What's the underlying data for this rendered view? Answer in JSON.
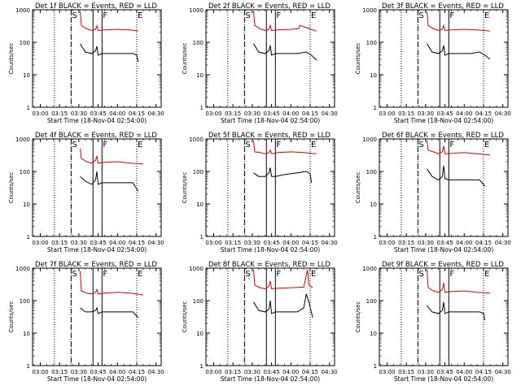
{
  "figure": {
    "colors": {
      "events": "#000000",
      "lld": "#e00000",
      "axes": "#000000"
    }
  },
  "chart_data": [
    {
      "type": "line",
      "panel": 1,
      "title": "Det 1f BLACK = Events, RED = LLD",
      "xlabel": "Start Time (18-Nov-04 02:54:00)",
      "ylabel": "Counts/sec",
      "x_ticks": [
        "03:00",
        "03:15",
        "03:30",
        "03:45",
        "04:00",
        "04:15",
        "04:30"
      ],
      "y_ticks": [
        "1",
        "10",
        "100",
        "1000"
      ],
      "y_scale": "log",
      "ylim": [
        1,
        1000
      ],
      "xlim": [
        "02:54",
        "04:34"
      ],
      "markers": {
        "S": "03:24",
        "F": "03:48",
        "E": "04:15"
      },
      "dotted_lines": [
        "03:11",
        "03:24",
        "04:15"
      ],
      "dashed_line": "03:24",
      "solid_lines": [
        "03:41",
        "03:48"
      ],
      "series": [
        {
          "name": "Events",
          "color": "#000000",
          "x": [
            "03:31",
            "03:35",
            "03:40",
            "03:43",
            "03:44",
            "03:45",
            "03:48",
            "03:55",
            "04:05",
            "04:12",
            "04:15",
            "04:16"
          ],
          "y": [
            90,
            50,
            45,
            55,
            75,
            40,
            45,
            45,
            45,
            45,
            40,
            25
          ]
        },
        {
          "name": "LLD",
          "color": "#e00000",
          "x": [
            "03:31",
            "03:32",
            "03:36",
            "03:40",
            "03:43",
            "03:44",
            "03:45",
            "03:50",
            "04:00",
            "04:10",
            "04:16"
          ],
          "y": [
            900,
            330,
            260,
            230,
            250,
            320,
            230,
            240,
            250,
            240,
            220
          ]
        }
      ]
    },
    {
      "type": "line",
      "panel": 2,
      "title": "Det 2f BLACK = Events, RED = LLD",
      "xlabel": "Start Time (18-Nov-04 02:54:00)",
      "ylabel": "Counts/sec",
      "x_ticks": [
        "03:00",
        "03:15",
        "03:30",
        "03:45",
        "04:00",
        "04:15",
        "04:30"
      ],
      "y_ticks": [
        "1",
        "10",
        "100",
        "1000"
      ],
      "y_scale": "log",
      "ylim": [
        1,
        1000
      ],
      "xlim": [
        "02:54",
        "04:34"
      ],
      "markers": {
        "S": "03:24",
        "F": "03:48",
        "E": "04:15"
      },
      "dotted_lines": [
        "03:11",
        "03:24",
        "04:15"
      ],
      "dashed_line": "03:24",
      "solid_lines": [
        "03:41",
        "03:48"
      ],
      "series": [
        {
          "name": "Events",
          "color": "#000000",
          "x": [
            "03:31",
            "03:35",
            "03:40",
            "03:43",
            "03:44",
            "03:45",
            "03:48",
            "03:55",
            "04:05",
            "04:12",
            "04:16",
            "04:20"
          ],
          "y": [
            90,
            50,
            45,
            55,
            80,
            40,
            45,
            45,
            45,
            50,
            40,
            28
          ]
        },
        {
          "name": "LLD",
          "color": "#e00000",
          "x": [
            "03:31",
            "03:32",
            "03:36",
            "03:40",
            "03:43",
            "03:44",
            "03:45",
            "03:50",
            "04:00",
            "04:06",
            "04:07",
            "04:20"
          ],
          "y": [
            900,
            330,
            260,
            230,
            250,
            330,
            230,
            240,
            250,
            260,
            330,
            220
          ]
        }
      ]
    },
    {
      "type": "line",
      "panel": 3,
      "title": "Det 3f BLACK = Events, RED = LLD",
      "xlabel": "Start Time (18-Nov-04 02:54:00)",
      "ylabel": "Counts/sec",
      "x_ticks": [
        "03:00",
        "03:15",
        "03:30",
        "03:45",
        "04:00",
        "04:15",
        "04:30"
      ],
      "y_ticks": [
        "1",
        "10",
        "100",
        "1000"
      ],
      "y_scale": "log",
      "ylim": [
        1,
        1000
      ],
      "xlim": [
        "02:54",
        "04:34"
      ],
      "markers": {
        "S": "03:24",
        "F": "03:48",
        "E": "04:15"
      },
      "dotted_lines": [
        "03:11",
        "03:24",
        "04:15"
      ],
      "dashed_line": "03:24",
      "solid_lines": [
        "03:41",
        "03:48"
      ],
      "series": [
        {
          "name": "Events",
          "color": "#000000",
          "x": [
            "03:31",
            "03:35",
            "03:40",
            "03:43",
            "03:44",
            "03:45",
            "03:48",
            "03:55",
            "04:05",
            "04:12",
            "04:16",
            "04:20"
          ],
          "y": [
            90,
            50,
            45,
            55,
            80,
            40,
            45,
            45,
            45,
            50,
            40,
            30
          ]
        },
        {
          "name": "LLD",
          "color": "#e00000",
          "x": [
            "03:31",
            "03:32",
            "03:36",
            "03:40",
            "03:43",
            "03:44",
            "03:45",
            "03:50",
            "04:00",
            "04:10",
            "04:20"
          ],
          "y": [
            900,
            330,
            260,
            230,
            250,
            330,
            230,
            240,
            250,
            240,
            220
          ]
        }
      ]
    },
    {
      "type": "line",
      "panel": 4,
      "title": "Det 4f BLACK = Events, RED = LLD",
      "xlabel": "Start Time (18-Nov-04 02:54:00)",
      "ylabel": "Counts/sec",
      "x_ticks": [
        "03:00",
        "03:15",
        "03:30",
        "03:45",
        "04:00",
        "04:15",
        "04:30"
      ],
      "y_ticks": [
        "1",
        "10",
        "100",
        "1000"
      ],
      "y_scale": "log",
      "ylim": [
        1,
        1000
      ],
      "xlim": [
        "02:54",
        "04:34"
      ],
      "markers": {
        "S": "03:24",
        "F": "03:48",
        "E": "04:15"
      },
      "dotted_lines": [
        "03:11",
        "03:24",
        "04:15"
      ],
      "dashed_line": "03:24",
      "solid_lines": [
        "03:41",
        "03:48"
      ],
      "series": [
        {
          "name": "Events",
          "color": "#000000",
          "x": [
            "03:31",
            "03:35",
            "03:40",
            "03:43",
            "03:44",
            "03:45",
            "03:48",
            "03:55",
            "04:05",
            "04:12",
            "04:16"
          ],
          "y": [
            70,
            50,
            40,
            55,
            100,
            40,
            45,
            45,
            45,
            45,
            25
          ]
        },
        {
          "name": "LLD",
          "color": "#e00000",
          "x": [
            "03:31",
            "03:32",
            "03:36",
            "03:40",
            "03:43",
            "03:44",
            "03:45",
            "03:50",
            "04:00",
            "04:10",
            "04:20"
          ],
          "y": [
            500,
            250,
            200,
            180,
            220,
            300,
            180,
            190,
            200,
            180,
            170
          ]
        }
      ]
    },
    {
      "type": "line",
      "panel": 5,
      "title": "Det 5f BLACK = Events, RED = LLD",
      "xlabel": "Start Time (18-Nov-04 02:54:00)",
      "ylabel": "Counts/sec",
      "x_ticks": [
        "03:00",
        "03:15",
        "03:30",
        "03:45",
        "04:00",
        "04:15",
        "04:30"
      ],
      "y_ticks": [
        "1",
        "10",
        "100",
        "1000"
      ],
      "y_scale": "log",
      "ylim": [
        1,
        1000
      ],
      "xlim": [
        "02:54",
        "04:34"
      ],
      "markers": {
        "S": "03:24",
        "F": "03:48",
        "E": "04:15"
      },
      "dotted_lines": [
        "03:11",
        "03:24",
        "04:15"
      ],
      "dashed_line": "03:24",
      "solid_lines": [
        "03:41",
        "03:48"
      ],
      "series": [
        {
          "name": "Events",
          "color": "#000000",
          "x": [
            "03:31",
            "03:35",
            "03:40",
            "03:43",
            "03:44",
            "03:45",
            "03:48",
            "03:55",
            "04:05",
            "04:12",
            "04:15",
            "04:16"
          ],
          "y": [
            90,
            70,
            70,
            90,
            130,
            70,
            70,
            80,
            90,
            100,
            85,
            45
          ]
        },
        {
          "name": "LLD",
          "color": "#e00000",
          "x": [
            "03:31",
            "03:32",
            "03:36",
            "03:40",
            "03:43",
            "03:44",
            "03:45",
            "03:50",
            "04:00",
            "04:10",
            "04:20"
          ],
          "y": [
            900,
            400,
            380,
            350,
            380,
            450,
            350,
            380,
            400,
            380,
            350
          ]
        }
      ]
    },
    {
      "type": "line",
      "panel": 6,
      "title": "Det 6f BLACK = Events, RED = LLD",
      "xlabel": "Start Time (18-Nov-04 02:54:00)",
      "ylabel": "Counts/sec",
      "x_ticks": [
        "03:00",
        "03:15",
        "03:30",
        "03:45",
        "04:00",
        "04:15",
        "04:30"
      ],
      "y_ticks": [
        "1",
        "10",
        "100",
        "1000"
      ],
      "y_scale": "log",
      "ylim": [
        1,
        1000
      ],
      "xlim": [
        "02:54",
        "04:34"
      ],
      "markers": {
        "S": "03:24",
        "F": "03:48",
        "E": "04:15"
      },
      "dotted_lines": [
        "03:11",
        "03:24",
        "04:15"
      ],
      "dashed_line": "03:24",
      "solid_lines": [
        "03:41",
        "03:48"
      ],
      "series": [
        {
          "name": "Events",
          "color": "#000000",
          "x": [
            "03:31",
            "03:35",
            "03:40",
            "03:43",
            "03:44",
            "03:45",
            "03:48",
            "03:55",
            "04:05",
            "04:12",
            "04:16"
          ],
          "y": [
            120,
            70,
            55,
            70,
            150,
            60,
            55,
            55,
            55,
            55,
            35
          ]
        },
        {
          "name": "LLD",
          "color": "#e00000",
          "x": [
            "03:31",
            "03:32",
            "03:36",
            "03:40",
            "03:43",
            "03:44",
            "03:45",
            "03:50",
            "04:00",
            "04:10",
            "04:20"
          ],
          "y": [
            900,
            450,
            400,
            350,
            400,
            600,
            350,
            360,
            380,
            350,
            320
          ]
        }
      ]
    },
    {
      "type": "line",
      "panel": 7,
      "title": "Det 7f BLACK = Events, RED = LLD",
      "xlabel": "Start Time (18-Nov-04 02:54:00)",
      "ylabel": "Counts/sec",
      "x_ticks": [
        "03:00",
        "03:15",
        "03:30",
        "03:45",
        "04:00",
        "04:15",
        "04:30"
      ],
      "y_ticks": [
        "1",
        "10",
        "100",
        "1000"
      ],
      "y_scale": "log",
      "ylim": [
        1,
        1000
      ],
      "xlim": [
        "02:54",
        "04:34"
      ],
      "markers": {
        "S": "03:24",
        "F": "03:48",
        "E": "04:15"
      },
      "dotted_lines": [
        "03:11",
        "03:24",
        "04:15"
      ],
      "dashed_line": "03:24",
      "solid_lines": [
        "03:41",
        "03:48"
      ],
      "series": [
        {
          "name": "Events",
          "color": "#000000",
          "x": [
            "03:31",
            "03:35",
            "03:40",
            "03:43",
            "03:44",
            "03:45",
            "03:48",
            "03:55",
            "04:05",
            "04:12",
            "04:16"
          ],
          "y": [
            60,
            45,
            45,
            50,
            60,
            40,
            45,
            45,
            45,
            45,
            30
          ]
        },
        {
          "name": "LLD",
          "color": "#e00000",
          "x": [
            "03:31",
            "03:32",
            "03:36",
            "03:40",
            "03:43",
            "03:44",
            "03:45",
            "03:50",
            "04:00",
            "04:10",
            "04:20"
          ],
          "y": [
            800,
            200,
            170,
            160,
            180,
            220,
            160,
            170,
            180,
            170,
            150
          ]
        }
      ]
    },
    {
      "type": "line",
      "panel": 8,
      "title": "Det 8f BLACK = Events, RED = LLD",
      "xlabel": "Start Time (18-Nov-04 02:54:00)",
      "ylabel": "Counts/sec",
      "x_ticks": [
        "03:00",
        "03:15",
        "03:30",
        "03:45",
        "04:00",
        "04:15",
        "04:30"
      ],
      "y_ticks": [
        "1",
        "10",
        "100",
        "1000"
      ],
      "y_scale": "log",
      "ylim": [
        1,
        1000
      ],
      "xlim": [
        "02:54",
        "04:34"
      ],
      "markers": {
        "S": "03:24",
        "F": "03:48",
        "E": "04:15"
      },
      "dotted_lines": [
        "03:11",
        "03:24",
        "04:15"
      ],
      "dashed_line": "03:24",
      "solid_lines": [
        "03:41",
        "03:48"
      ],
      "series": [
        {
          "name": "Events",
          "color": "#000000",
          "x": [
            "03:31",
            "03:35",
            "03:40",
            "03:43",
            "03:44",
            "03:45",
            "03:48",
            "03:55",
            "04:05",
            "04:10",
            "04:12",
            "04:14",
            "04:17"
          ],
          "y": [
            90,
            50,
            45,
            55,
            100,
            40,
            45,
            45,
            45,
            60,
            160,
            90,
            30
          ]
        },
        {
          "name": "LLD",
          "color": "#e00000",
          "x": [
            "03:31",
            "03:32",
            "03:36",
            "03:40",
            "03:43",
            "03:44",
            "03:45",
            "03:50",
            "04:00",
            "04:10",
            "04:12",
            "04:13",
            "04:14",
            "04:17"
          ],
          "y": [
            900,
            300,
            250,
            230,
            280,
            400,
            230,
            240,
            250,
            260,
            600,
            900,
            300,
            250
          ]
        }
      ]
    },
    {
      "type": "line",
      "panel": 9,
      "title": "Det 9f BLACK = Events, RED = LLD",
      "xlabel": "Start Time (18-Nov-04 02:54:00)",
      "ylabel": "Counts/sec",
      "x_ticks": [
        "03:00",
        "03:15",
        "03:30",
        "03:45",
        "04:00",
        "04:15",
        "04:30"
      ],
      "y_ticks": [
        "1",
        "10",
        "100",
        "1000"
      ],
      "y_scale": "log",
      "ylim": [
        1,
        1000
      ],
      "xlim": [
        "02:54",
        "04:34"
      ],
      "markers": {
        "S": "03:24",
        "F": "03:48",
        "E": "04:15"
      },
      "dotted_lines": [
        "03:11",
        "03:24",
        "04:15"
      ],
      "dashed_line": "03:24",
      "solid_lines": [
        "03:41",
        "03:48"
      ],
      "series": [
        {
          "name": "Events",
          "color": "#000000",
          "x": [
            "03:31",
            "03:35",
            "03:40",
            "03:43",
            "03:44",
            "03:45",
            "03:48",
            "03:55",
            "04:05",
            "04:12",
            "04:15",
            "04:16"
          ],
          "y": [
            70,
            45,
            40,
            50,
            90,
            40,
            45,
            45,
            45,
            45,
            40,
            25
          ]
        },
        {
          "name": "LLD",
          "color": "#e00000",
          "x": [
            "03:31",
            "03:32",
            "03:36",
            "03:40",
            "03:43",
            "03:44",
            "03:45",
            "03:50",
            "04:00",
            "04:10",
            "04:20"
          ],
          "y": [
            900,
            250,
            200,
            180,
            220,
            350,
            180,
            190,
            200,
            180,
            170
          ]
        }
      ]
    }
  ]
}
